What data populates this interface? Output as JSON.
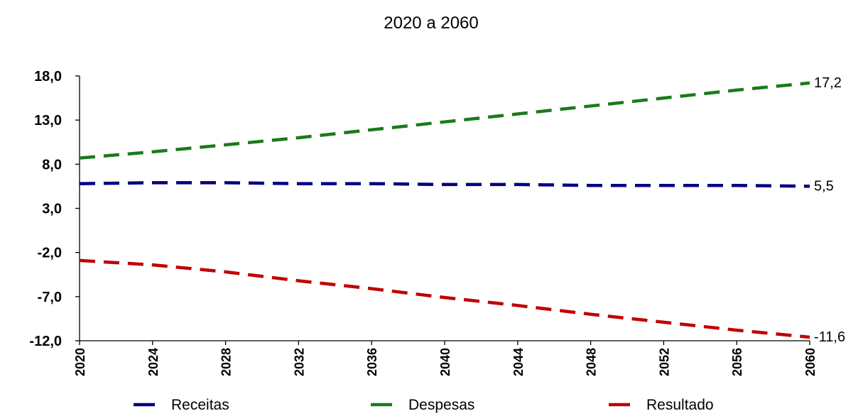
{
  "chart_data": {
    "type": "line",
    "title": "2020 a 2060",
    "xlabel": "",
    "ylabel": "",
    "ylim": [
      -12,
      18
    ],
    "yticks": [
      "18,0",
      "13,0",
      "8,0",
      "3,0",
      "-2,0",
      "-7,0",
      "-12,0"
    ],
    "ytick_values": [
      18,
      13,
      8,
      3,
      -2,
      -7,
      -12
    ],
    "xticks": [
      "2020",
      "2024",
      "2028",
      "2032",
      "2036",
      "2040",
      "2044",
      "2048",
      "2052",
      "2056",
      "2060"
    ],
    "x": [
      2020,
      2024,
      2028,
      2032,
      2036,
      2040,
      2044,
      2048,
      2052,
      2056,
      2060
    ],
    "grid": false,
    "legend_position": "bottom",
    "series": [
      {
        "name": "Receitas",
        "color": "#000080",
        "values": [
          5.8,
          5.9,
          5.9,
          5.8,
          5.8,
          5.7,
          5.7,
          5.6,
          5.6,
          5.6,
          5.5
        ],
        "end_label": "5,5"
      },
      {
        "name": "Despesas",
        "color": "#1a7a1a",
        "values": [
          8.7,
          9.4,
          10.2,
          11.0,
          11.9,
          12.8,
          13.7,
          14.6,
          15.5,
          16.4,
          17.2
        ],
        "end_label": "17,2"
      },
      {
        "name": "Resultado",
        "color": "#c00000",
        "values": [
          -2.9,
          -3.4,
          -4.2,
          -5.2,
          -6.1,
          -7.1,
          -8.0,
          -9.0,
          -9.9,
          -10.8,
          -11.6
        ],
        "end_label": "-11,6"
      }
    ]
  }
}
